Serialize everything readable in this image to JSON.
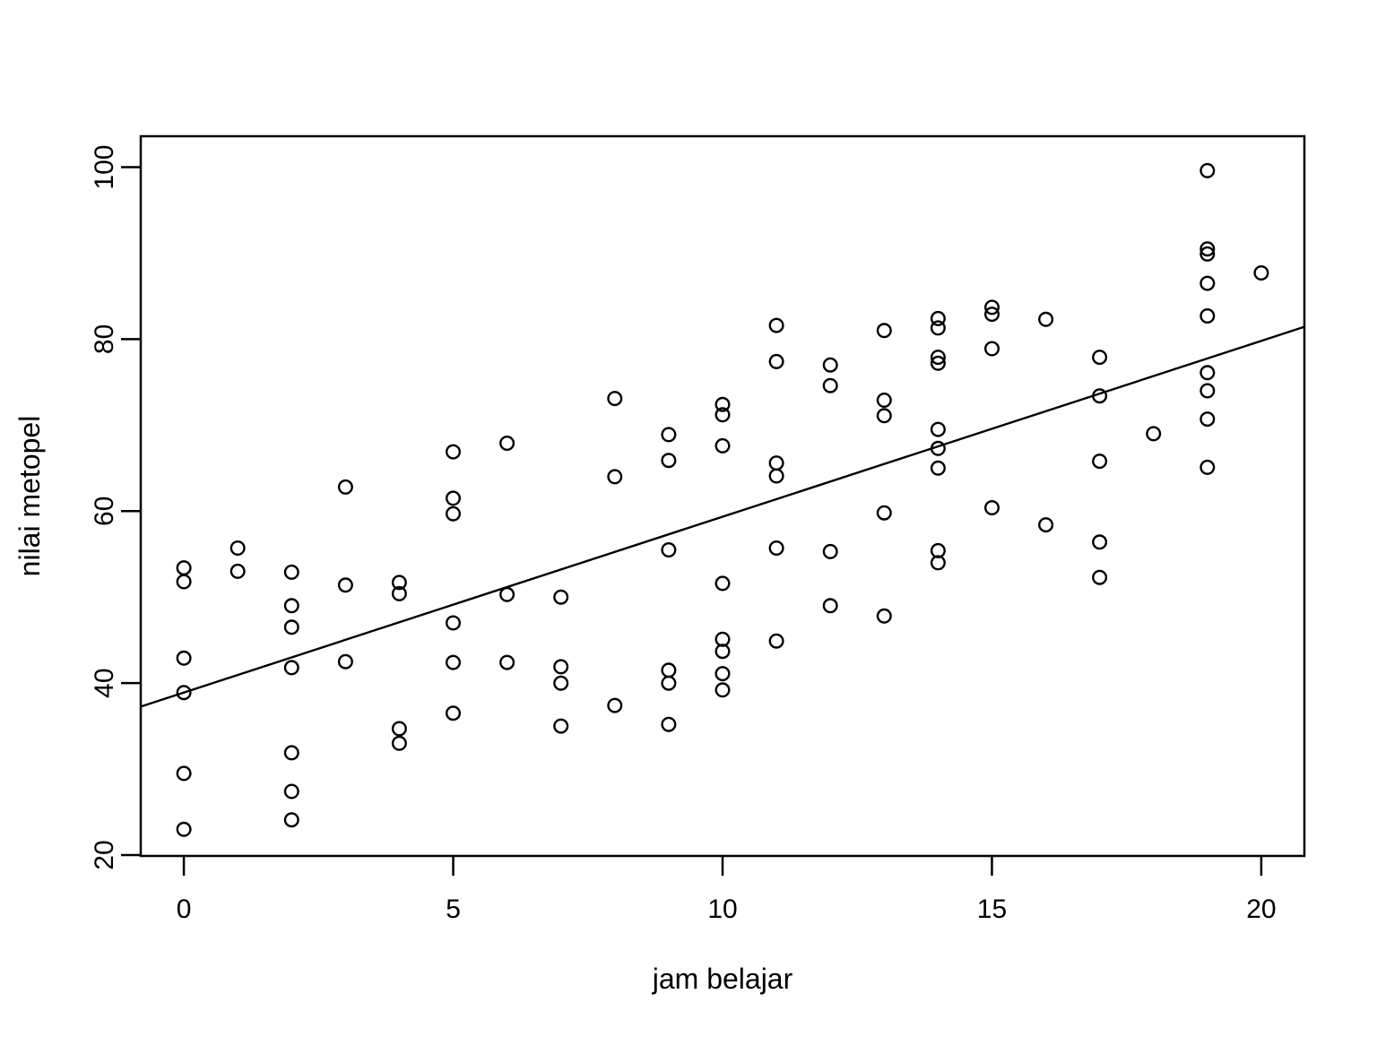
{
  "figure": {
    "background_color": "#ffffff",
    "foreground_color": "#000000"
  },
  "chart_data": {
    "type": "scatter",
    "title": "",
    "xlabel": "jam belajar",
    "ylabel": "nilai metopel",
    "legend": "none",
    "grid": false,
    "marker": "open-circle",
    "marker_color": "#000000",
    "x_ticks": [
      0,
      5,
      10,
      15,
      20
    ],
    "y_ticks": [
      20,
      40,
      60,
      80,
      100
    ],
    "xlim": [
      -0.8,
      20.8
    ],
    "ylim": [
      19.9,
      103.6
    ],
    "points": [
      [
        0,
        53.4
      ],
      [
        0,
        51.8
      ],
      [
        0,
        42.9
      ],
      [
        0,
        38.9
      ],
      [
        0,
        29.5
      ],
      [
        0,
        23.0
      ],
      [
        1,
        55.7
      ],
      [
        1,
        53.0
      ],
      [
        2,
        52.9
      ],
      [
        2,
        49.0
      ],
      [
        2,
        46.5
      ],
      [
        2,
        41.8
      ],
      [
        2,
        31.9
      ],
      [
        2,
        27.4
      ],
      [
        2,
        24.1
      ],
      [
        3,
        62.8
      ],
      [
        3,
        51.4
      ],
      [
        3,
        42.5
      ],
      [
        4,
        51.7
      ],
      [
        4,
        50.4
      ],
      [
        4,
        34.7
      ],
      [
        4,
        33.0
      ],
      [
        5,
        66.9
      ],
      [
        5,
        61.5
      ],
      [
        5,
        59.7
      ],
      [
        5,
        47.0
      ],
      [
        5,
        42.4
      ],
      [
        5,
        36.5
      ],
      [
        6,
        67.9
      ],
      [
        6,
        50.3
      ],
      [
        6,
        42.4
      ],
      [
        7,
        50.0
      ],
      [
        7,
        41.9
      ],
      [
        7,
        40.0
      ],
      [
        7,
        35.0
      ],
      [
        8,
        73.1
      ],
      [
        8,
        64.0
      ],
      [
        8,
        37.4
      ],
      [
        9,
        68.9
      ],
      [
        9,
        65.9
      ],
      [
        9,
        55.5
      ],
      [
        9,
        41.5
      ],
      [
        9,
        40.0
      ],
      [
        9,
        35.2
      ],
      [
        10,
        72.4
      ],
      [
        10,
        71.2
      ],
      [
        10,
        67.6
      ],
      [
        10,
        51.6
      ],
      [
        10,
        45.1
      ],
      [
        10,
        43.7
      ],
      [
        10,
        41.1
      ],
      [
        10,
        39.2
      ],
      [
        11,
        81.6
      ],
      [
        11,
        77.4
      ],
      [
        11,
        65.6
      ],
      [
        11,
        64.1
      ],
      [
        11,
        55.7
      ],
      [
        11,
        44.9
      ],
      [
        12,
        77.0
      ],
      [
        12,
        74.6
      ],
      [
        12,
        55.3
      ],
      [
        12,
        49.0
      ],
      [
        13,
        81.0
      ],
      [
        13,
        72.9
      ],
      [
        13,
        71.1
      ],
      [
        13,
        59.8
      ],
      [
        13,
        47.8
      ],
      [
        14,
        82.4
      ],
      [
        14,
        81.3
      ],
      [
        14,
        77.9
      ],
      [
        14,
        77.2
      ],
      [
        14,
        69.5
      ],
      [
        14,
        67.3
      ],
      [
        14,
        65.0
      ],
      [
        14,
        55.4
      ],
      [
        14,
        54.0
      ],
      [
        15,
        83.7
      ],
      [
        15,
        82.9
      ],
      [
        15,
        78.9
      ],
      [
        15,
        60.4
      ],
      [
        16,
        82.3
      ],
      [
        16,
        58.4
      ],
      [
        17,
        77.9
      ],
      [
        17,
        73.4
      ],
      [
        17,
        65.8
      ],
      [
        17,
        56.4
      ],
      [
        17,
        52.3
      ],
      [
        18,
        69.0
      ],
      [
        19,
        99.6
      ],
      [
        19,
        90.5
      ],
      [
        19,
        89.9
      ],
      [
        19,
        86.5
      ],
      [
        19,
        82.7
      ],
      [
        19,
        76.1
      ],
      [
        19,
        74.0
      ],
      [
        19,
        70.7
      ],
      [
        19,
        65.1
      ],
      [
        20,
        87.7
      ]
    ],
    "regression_line": {
      "intercept": 38.9,
      "slope": 2.045,
      "x_start": -0.8,
      "x_end": 20.8,
      "color": "#000000"
    }
  }
}
